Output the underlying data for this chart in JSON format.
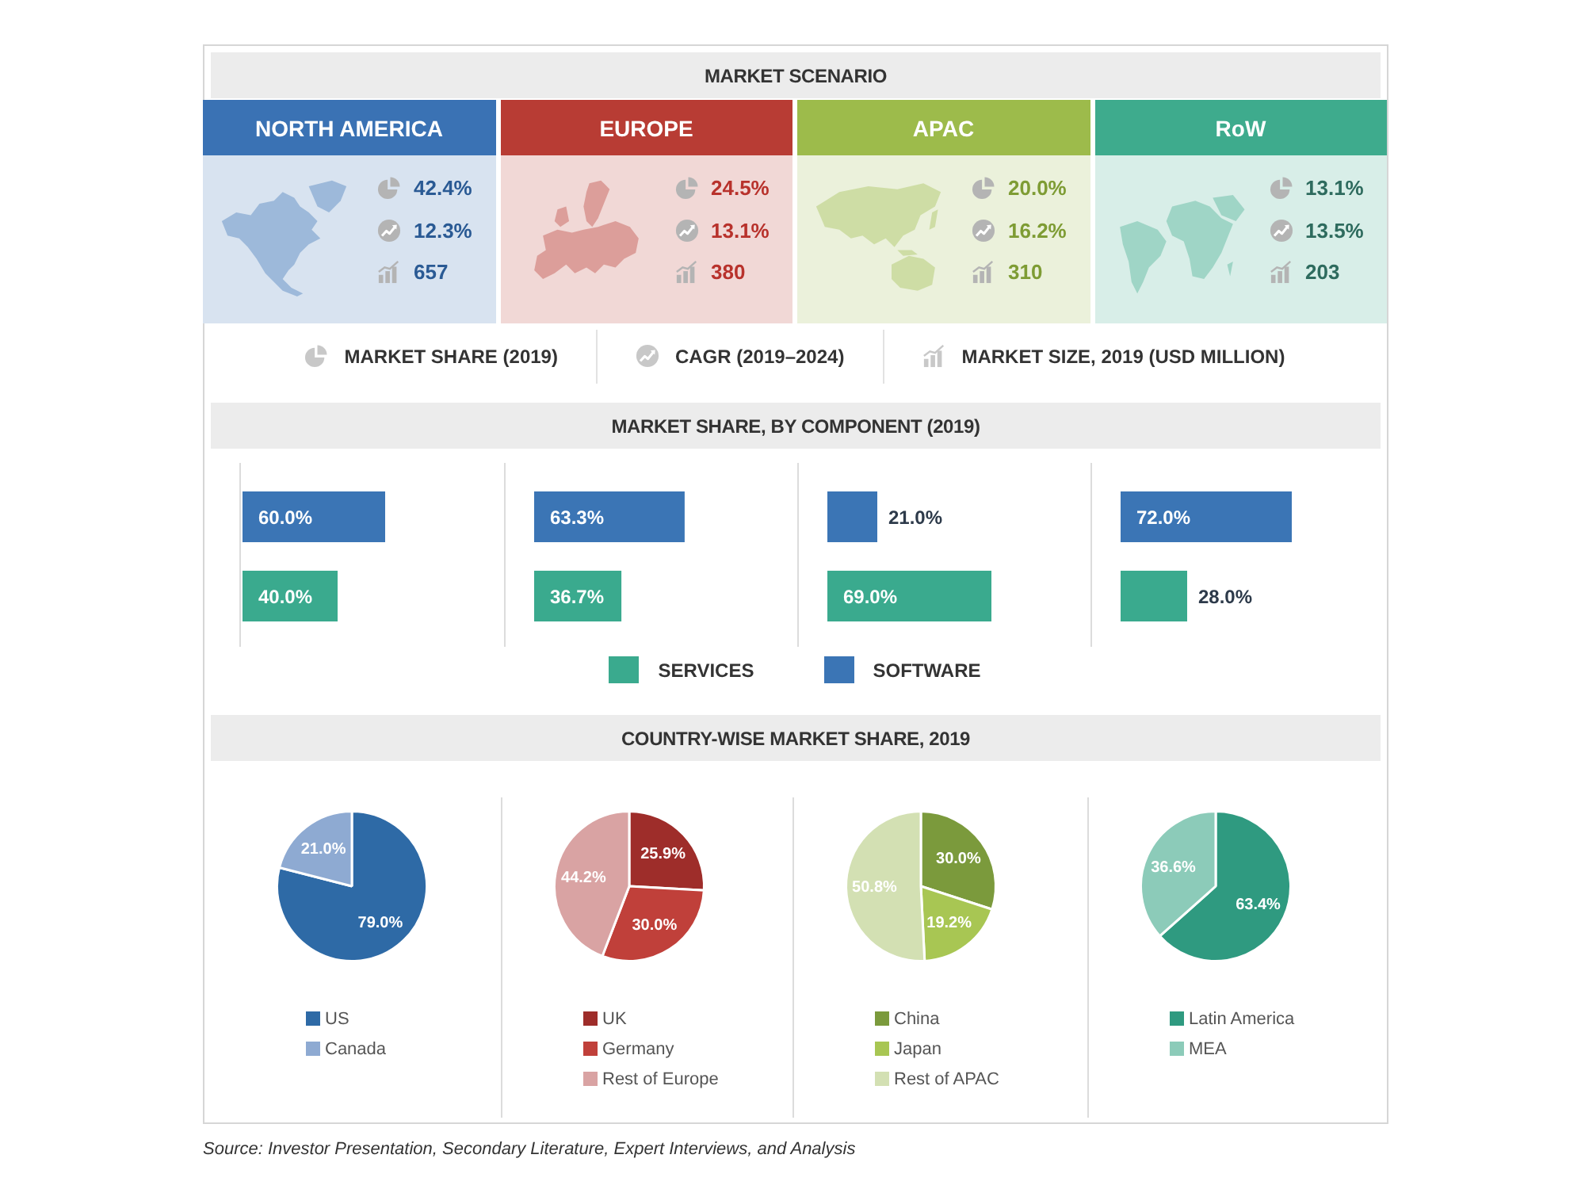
{
  "chart_data": [
    {
      "type": "other",
      "title": "MARKET SCENARIO",
      "categories": [
        "NORTH AMERICA",
        "EUROPE",
        "APAC",
        "RoW"
      ],
      "colors": [
        "#3a72b4",
        "#b83c34",
        "#9dbb4b",
        "#3eab8d"
      ],
      "legend": "bottom",
      "series": [
        {
          "name": "MARKET SHARE (2019)",
          "colors": [
            "#2a5a94",
            "#b8322c",
            "#7e9c34",
            "#2e6b5e"
          ],
          "values": [
            42.4,
            24.5,
            20.0,
            13.1
          ],
          "value_labels": [
            "42.4%",
            "24.5%",
            "20.0%",
            "13.1%"
          ]
        },
        {
          "name": "CAGR (2019–2024)",
          "colors": [
            "#2a5a94",
            "#b8322c",
            "#7e9c34",
            "#2e6b5e"
          ],
          "values": [
            12.3,
            13.1,
            16.2,
            13.5
          ],
          "value_labels": [
            "12.3%",
            "13.1%",
            "16.2%",
            "13.5%"
          ]
        },
        {
          "name": "MARKET SIZE, 2019 (USD MILLION)",
          "colors": [
            "#2a5a94",
            "#b8322c",
            "#7e9c34",
            "#2e6b5e"
          ],
          "values": [
            657,
            380,
            310,
            203
          ],
          "value_labels": [
            "657",
            "380",
            "310",
            "203"
          ]
        }
      ]
    },
    {
      "type": "other",
      "title": "MARKET SHARE, BY COMPONENT (2019)"
    },
    {
      "type": "bar",
      "orientation": "horizontal",
      "legend": "bottom",
      "categories": [
        null
      ],
      "series": [
        {
          "name": "SOFTWARE",
          "color": "#3b75b5",
          "values": [
            60.0
          ],
          "value_labels": [
            "60.0%"
          ]
        },
        {
          "name": "SERVICES",
          "color": "#3aaa8e",
          "values": [
            40.0
          ],
          "value_labels": [
            "40.0%"
          ]
        }
      ]
    },
    {
      "type": "bar",
      "orientation": "horizontal",
      "categories": [
        null
      ],
      "series": [
        {
          "color": "#3b75b5",
          "values": [
            63.3
          ],
          "value_labels": [
            "63.3%"
          ]
        },
        {
          "color": "#3aaa8e",
          "values": [
            36.7
          ],
          "value_labels": [
            "36.7%"
          ]
        }
      ]
    },
    {
      "type": "bar",
      "orientation": "horizontal",
      "categories": [
        null
      ],
      "series": [
        {
          "color": "#3b75b5",
          "values": [
            21.0
          ],
          "value_labels": [
            "21.0%"
          ]
        },
        {
          "color": "#3aaa8e",
          "values": [
            69.0
          ],
          "value_labels": [
            "69.0%"
          ]
        }
      ]
    },
    {
      "type": "bar",
      "orientation": "horizontal",
      "categories": [
        null
      ],
      "series": [
        {
          "color": "#3b75b5",
          "values": [
            72.0
          ],
          "value_labels": [
            "72.0%"
          ]
        },
        {
          "color": "#3aaa8e",
          "values": [
            28.0
          ],
          "value_labels": [
            "28.0%"
          ]
        }
      ]
    },
    {
      "type": "other",
      "title": "COUNTRY-WISE MARKET SHARE, 2019"
    },
    {
      "type": "pie",
      "legend": "bottom",
      "categories": [
        "US",
        "Canada"
      ],
      "values": [
        79.0,
        21.0
      ],
      "colors": [
        "#2e6aa6",
        "#8eaad2"
      ],
      "value_labels": [
        "79.0%",
        "21.0%"
      ]
    },
    {
      "type": "pie",
      "legend": "bottom",
      "categories": [
        "UK",
        "Germany",
        "Rest of Europe"
      ],
      "values": [
        25.9,
        30.0,
        44.2
      ],
      "colors": [
        "#9e2d2a",
        "#c0403a",
        "#d9a3a3"
      ],
      "value_labels": [
        "25.9%",
        "30.0%",
        "44.2%"
      ]
    },
    {
      "type": "pie",
      "legend": "bottom",
      "categories": [
        "China",
        "Japan",
        "Rest of APAC"
      ],
      "values": [
        30.0,
        19.2,
        50.8
      ],
      "colors": [
        "#7b9a3c",
        "#a8c653",
        "#d3e0b3"
      ],
      "value_labels": [
        "30.0%",
        "19.2%",
        "50.8%"
      ]
    },
    {
      "type": "pie",
      "legend": "bottom",
      "categories": [
        "Latin America",
        "MEA"
      ],
      "values": [
        63.4,
        36.6
      ],
      "colors": [
        "#2f9a80",
        "#8ccbb9"
      ],
      "value_labels": [
        "63.4%",
        "36.6%"
      ],
      "annotations": [
        "Source: Investor Presentation, Secondary Literature, Expert Interviews, and Analysis"
      ]
    }
  ]
}
